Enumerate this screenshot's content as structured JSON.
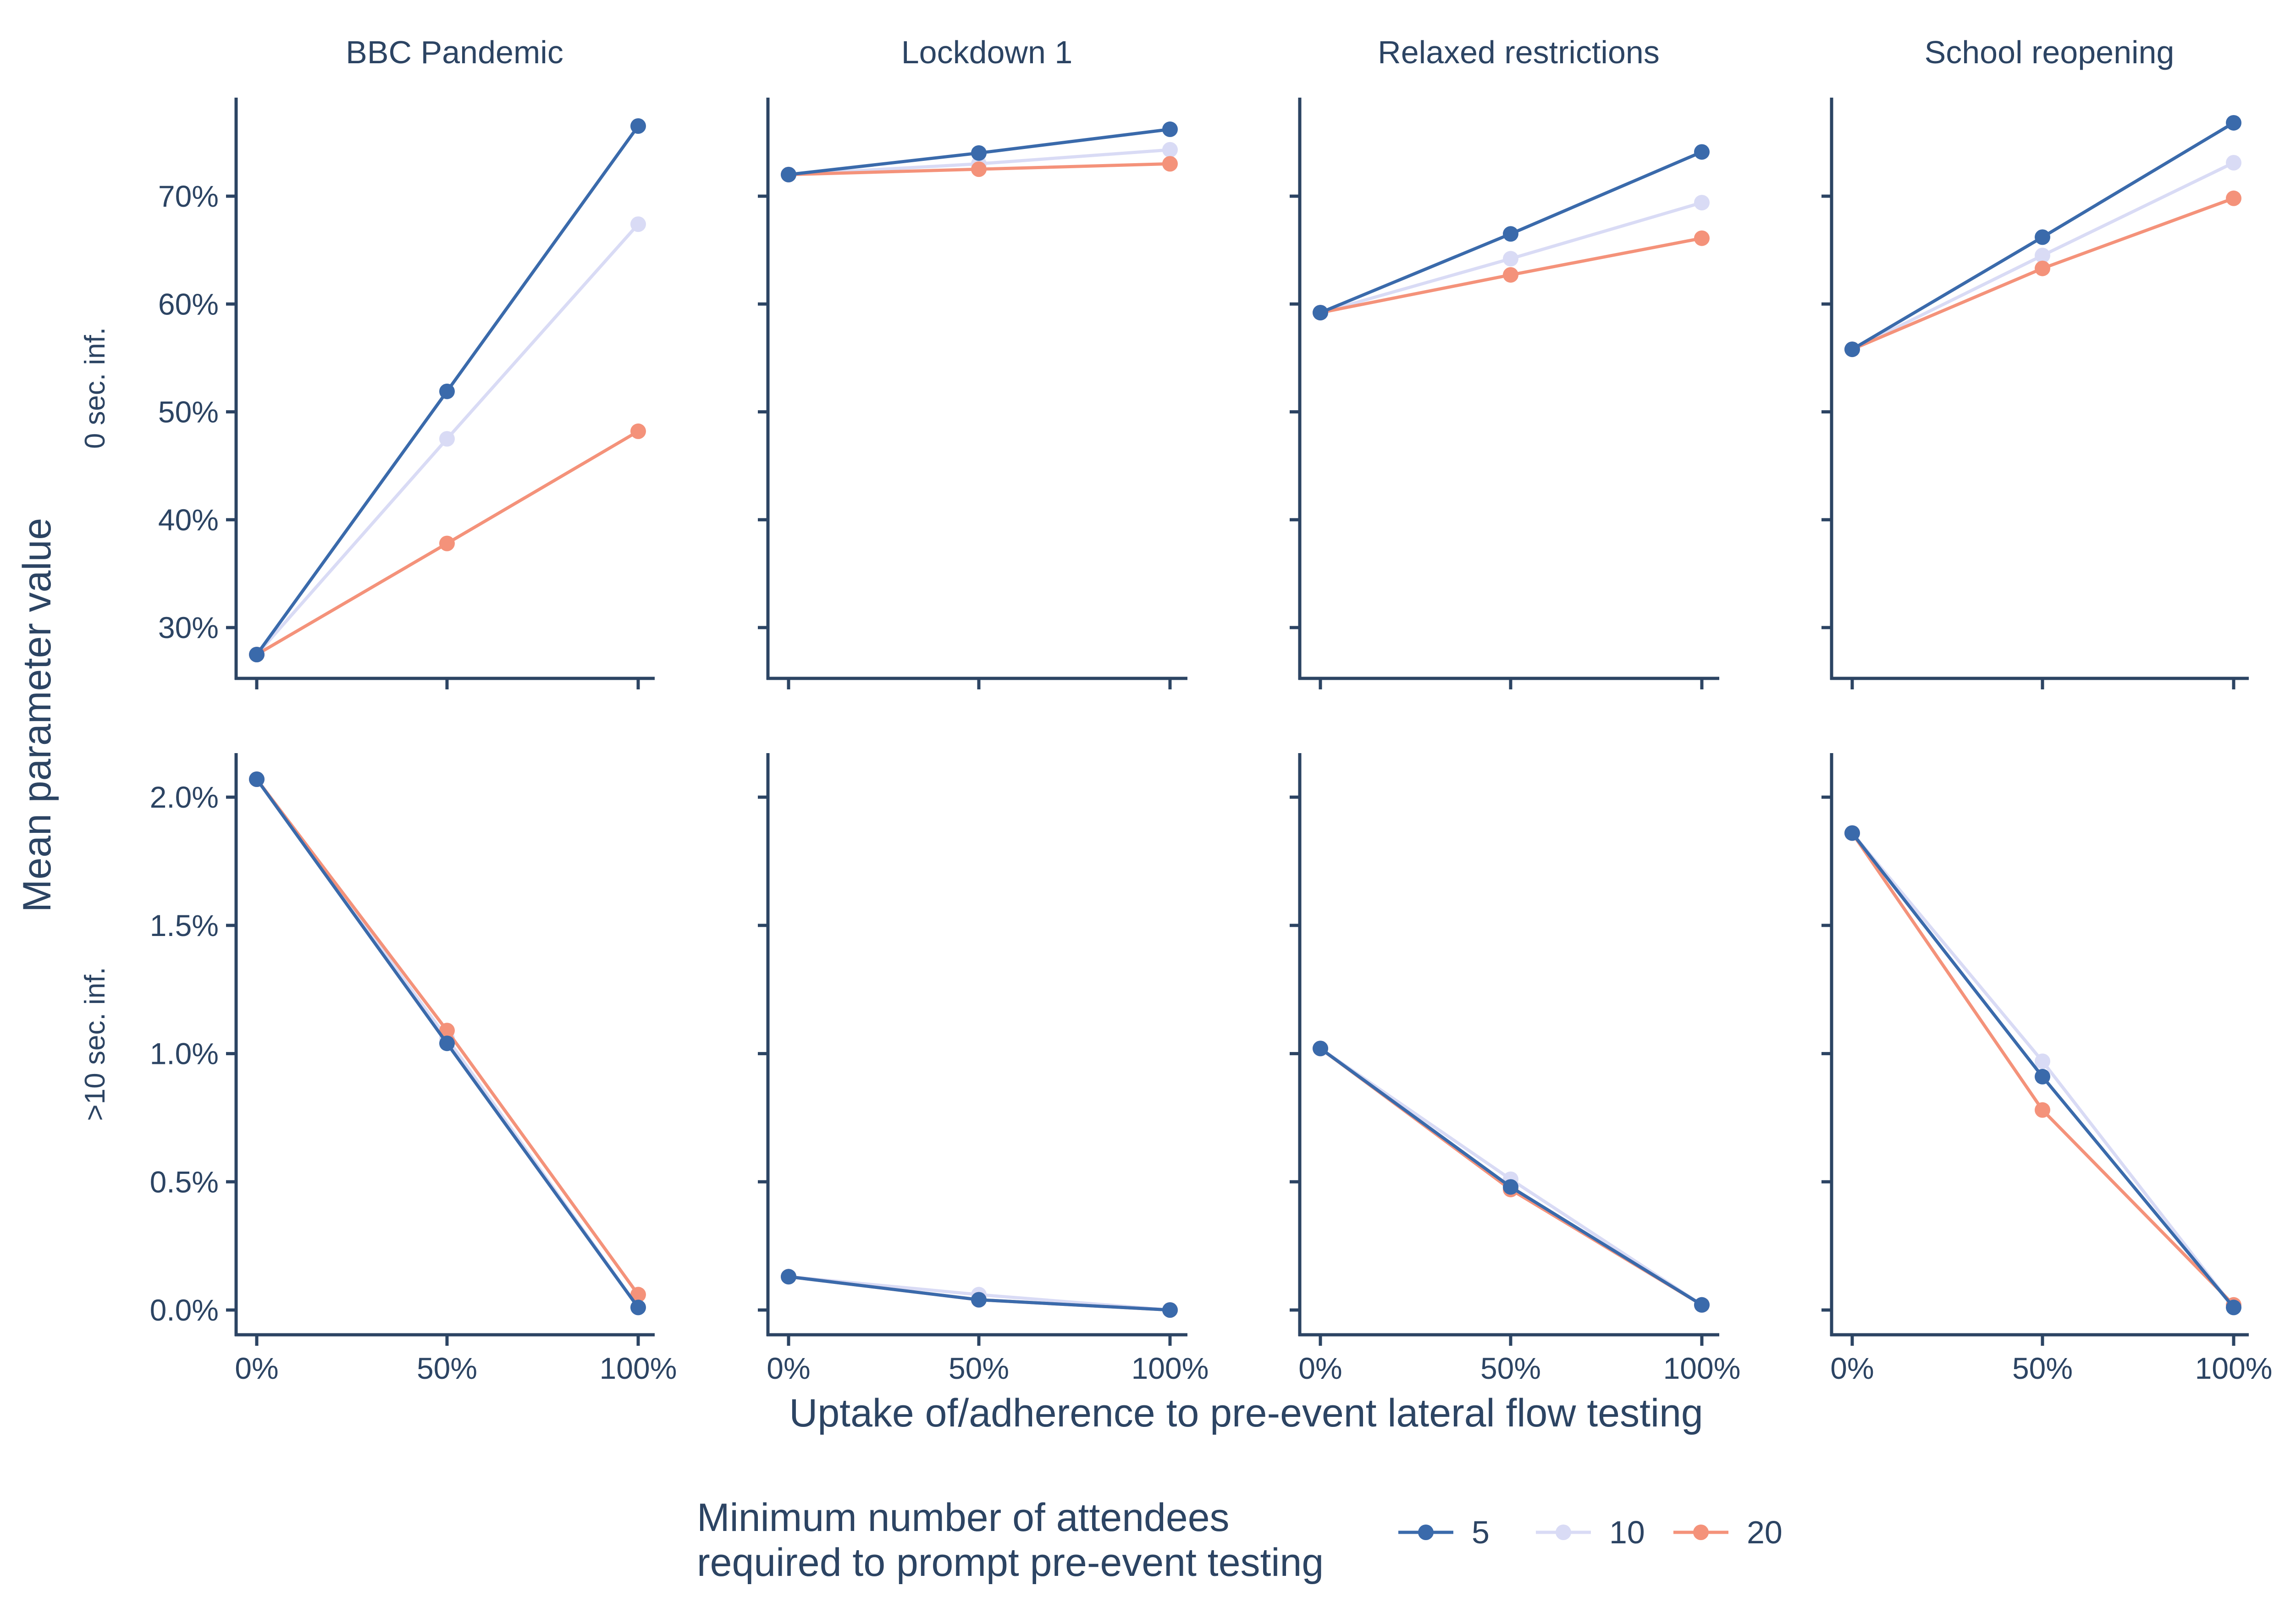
{
  "chart_data": {
    "type": "line",
    "xlabel": "Uptake of/adherence to pre-event lateral flow testing",
    "ylabel": "Mean parameter value",
    "x": [
      "0%",
      "50%",
      "100%"
    ],
    "legend": {
      "title_line1": "Minimum number of attendees",
      "title_line2": "required to prompt pre-event testing",
      "placement": "bottom",
      "entries": [
        "5",
        "10",
        "20"
      ]
    },
    "colors": {
      "5": "#3a6aab",
      "10": "#d9dbf5",
      "20": "#f4927a",
      "axis": "#2c4463"
    },
    "columns": [
      "BBC Pandemic",
      "Lockdown 1",
      "Relaxed restrictions",
      "School reopening"
    ],
    "rows": [
      {
        "label": "0 sec. inf.",
        "ylim": [
          27,
          79
        ],
        "yticks": [
          30,
          40,
          50,
          60,
          70
        ],
        "ytick_labels": [
          "30%",
          "40%",
          "50%",
          "60%",
          "70%"
        ],
        "panels": [
          {
            "facet": "BBC Pandemic",
            "series": [
              {
                "name": "5",
                "values": [
                  27.5,
                  51.9,
                  76.5
                ]
              },
              {
                "name": "10",
                "values": [
                  27.5,
                  47.5,
                  67.4
                ]
              },
              {
                "name": "20",
                "values": [
                  27.5,
                  37.8,
                  48.2
                ]
              }
            ]
          },
          {
            "facet": "Lockdown 1",
            "series": [
              {
                "name": "5",
                "values": [
                  72.0,
                  74.0,
                  76.2
                ]
              },
              {
                "name": "10",
                "values": [
                  72.0,
                  73.0,
                  74.3
                ]
              },
              {
                "name": "20",
                "values": [
                  72.0,
                  72.5,
                  73.0
                ]
              }
            ]
          },
          {
            "facet": "Relaxed restrictions",
            "series": [
              {
                "name": "5",
                "values": [
                  59.2,
                  66.5,
                  74.1
                ]
              },
              {
                "name": "10",
                "values": [
                  59.2,
                  64.2,
                  69.4
                ]
              },
              {
                "name": "20",
                "values": [
                  59.2,
                  62.7,
                  66.1
                ]
              }
            ]
          },
          {
            "facet": "School reopening",
            "series": [
              {
                "name": "5",
                "values": [
                  55.8,
                  66.2,
                  76.8
                ]
              },
              {
                "name": "10",
                "values": [
                  55.8,
                  64.5,
                  73.1
                ]
              },
              {
                "name": "20",
                "values": [
                  55.8,
                  63.3,
                  69.8
                ]
              }
            ]
          }
        ]
      },
      {
        "label": ">10 sec. inf.",
        "ylim": [
          -0.1,
          2.18
        ],
        "yticks": [
          0,
          0.5,
          1.0,
          1.5,
          2.0
        ],
        "ytick_labels": [
          "0.0%",
          "0.5%",
          "1.0%",
          "1.5%",
          "2.0%"
        ],
        "panels": [
          {
            "facet": "BBC Pandemic",
            "series": [
              {
                "name": "5",
                "values": [
                  2.07,
                  1.04,
                  0.01
                ]
              },
              {
                "name": "10",
                "values": [
                  2.07,
                  1.06,
                  0.01
                ]
              },
              {
                "name": "20",
                "values": [
                  2.07,
                  1.09,
                  0.06
                ]
              }
            ]
          },
          {
            "facet": "Lockdown 1",
            "series": [
              {
                "name": "5",
                "values": [
                  0.13,
                  0.04,
                  0.0
                ]
              },
              {
                "name": "10",
                "values": [
                  0.13,
                  0.06,
                  0.0
                ]
              },
              {
                "name": "20",
                "values": [
                  0.13,
                  0.04,
                  0.0
                ]
              }
            ]
          },
          {
            "facet": "Relaxed restrictions",
            "series": [
              {
                "name": "5",
                "values": [
                  1.02,
                  0.48,
                  0.02
                ]
              },
              {
                "name": "10",
                "values": [
                  1.02,
                  0.51,
                  0.02
                ]
              },
              {
                "name": "20",
                "values": [
                  1.02,
                  0.47,
                  0.02
                ]
              }
            ]
          },
          {
            "facet": "School reopening",
            "series": [
              {
                "name": "5",
                "values": [
                  1.86,
                  0.91,
                  0.01
                ]
              },
              {
                "name": "10",
                "values": [
                  1.86,
                  0.97,
                  0.01
                ]
              },
              {
                "name": "20",
                "values": [
                  1.86,
                  0.78,
                  0.02
                ]
              }
            ]
          }
        ]
      }
    ]
  }
}
